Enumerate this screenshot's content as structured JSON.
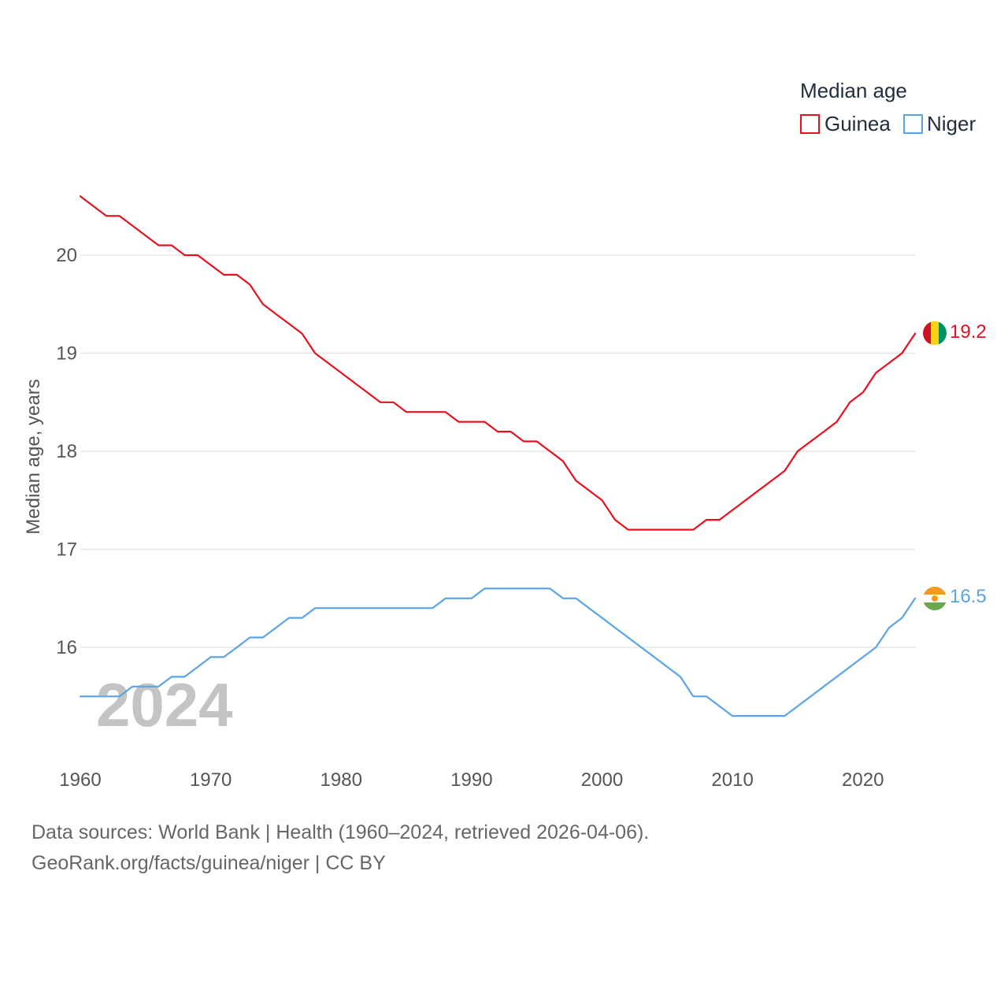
{
  "chart_data": {
    "type": "line",
    "ylabel": "Median age, years",
    "xlim": [
      1960,
      2024
    ],
    "ylim": [
      15.0,
      20.6
    ],
    "x_ticks": [
      1960,
      1970,
      1980,
      1990,
      2000,
      2010,
      2020
    ],
    "y_ticks": [
      16,
      17,
      18,
      19,
      20
    ],
    "grid": true,
    "legend": {
      "title": "Median age",
      "placement": "top-right"
    },
    "year_label": "2024",
    "x": [
      1960,
      1961,
      1962,
      1963,
      1964,
      1965,
      1966,
      1967,
      1968,
      1969,
      1970,
      1971,
      1972,
      1973,
      1974,
      1975,
      1976,
      1977,
      1978,
      1979,
      1980,
      1981,
      1982,
      1983,
      1984,
      1985,
      1986,
      1987,
      1988,
      1989,
      1990,
      1991,
      1992,
      1993,
      1994,
      1995,
      1996,
      1997,
      1998,
      1999,
      2000,
      2001,
      2002,
      2003,
      2004,
      2005,
      2006,
      2007,
      2008,
      2009,
      2010,
      2011,
      2012,
      2013,
      2014,
      2015,
      2016,
      2017,
      2018,
      2019,
      2020,
      2021,
      2022,
      2023,
      2024
    ],
    "series": [
      {
        "name": "Guinea",
        "color": "#e8101e",
        "end_value": "19.2",
        "flag": "guinea-flag",
        "values": [
          20.6,
          20.5,
          20.4,
          20.4,
          20.3,
          20.2,
          20.1,
          20.1,
          20.0,
          20.0,
          19.9,
          19.8,
          19.8,
          19.7,
          19.5,
          19.4,
          19.3,
          19.2,
          19.0,
          18.9,
          18.8,
          18.7,
          18.6,
          18.5,
          18.5,
          18.4,
          18.4,
          18.4,
          18.4,
          18.3,
          18.3,
          18.3,
          18.2,
          18.2,
          18.1,
          18.1,
          18.0,
          17.9,
          17.7,
          17.6,
          17.5,
          17.3,
          17.2,
          17.2,
          17.2,
          17.2,
          17.2,
          17.2,
          17.3,
          17.3,
          17.4,
          17.5,
          17.6,
          17.7,
          17.8,
          18.0,
          18.1,
          18.2,
          18.3,
          18.5,
          18.6,
          18.8,
          18.9,
          19.0,
          19.2
        ]
      },
      {
        "name": "Niger",
        "color": "#5aa4e6",
        "end_value": "16.5",
        "flag": "niger-flag",
        "values": [
          15.5,
          15.5,
          15.5,
          15.5,
          15.6,
          15.6,
          15.6,
          15.7,
          15.7,
          15.8,
          15.9,
          15.9,
          16.0,
          16.1,
          16.1,
          16.2,
          16.3,
          16.3,
          16.4,
          16.4,
          16.4,
          16.4,
          16.4,
          16.4,
          16.4,
          16.4,
          16.4,
          16.4,
          16.5,
          16.5,
          16.5,
          16.6,
          16.6,
          16.6,
          16.6,
          16.6,
          16.6,
          16.5,
          16.5,
          16.4,
          16.3,
          16.2,
          16.1,
          16.0,
          15.9,
          15.8,
          15.7,
          15.5,
          15.5,
          15.4,
          15.3,
          15.3,
          15.3,
          15.3,
          15.3,
          15.4,
          15.5,
          15.6,
          15.7,
          15.8,
          15.9,
          16.0,
          16.2,
          16.3,
          16.5
        ]
      }
    ]
  },
  "footer": {
    "source": "Data sources: World Bank | Health (1960–2024, retrieved 2026-04-06).",
    "credit": "GeoRank.org/facts/guinea/niger | CC BY"
  }
}
